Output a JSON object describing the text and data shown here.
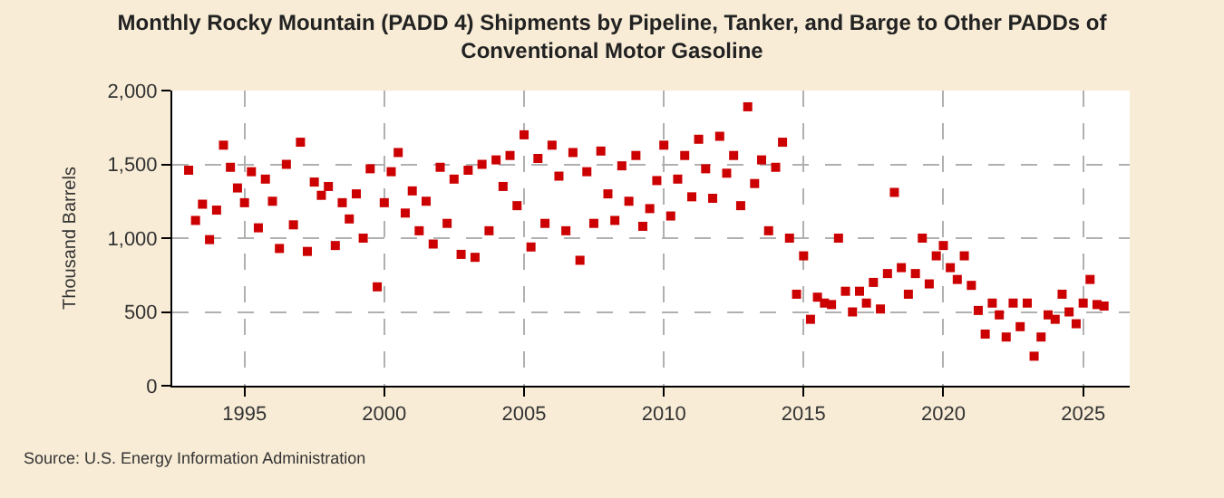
{
  "chart_data": {
    "type": "scatter",
    "title": "Monthly Rocky Mountain (PADD 4) Shipments by Pipeline, Tanker, and Barge to Other PADDs of Conventional Motor Gasoline",
    "ylabel": "Thousand Barrels",
    "annotations": [
      "Source: U.S. Energy Information Administration"
    ],
    "x": [
      "1993-01",
      "1993-04",
      "1993-07",
      "1993-10",
      "1994-01",
      "1994-04",
      "1994-07",
      "1994-10",
      "1995-01",
      "1995-04",
      "1995-07",
      "1995-10",
      "1996-01",
      "1996-04",
      "1996-07",
      "1996-10",
      "1997-01",
      "1997-04",
      "1997-07",
      "1997-10",
      "1998-01",
      "1998-04",
      "1998-07",
      "1998-10",
      "1999-01",
      "1999-04",
      "1999-07",
      "1999-10",
      "2000-01",
      "2000-04",
      "2000-07",
      "2000-10",
      "2001-01",
      "2001-04",
      "2001-07",
      "2001-10",
      "2002-01",
      "2002-04",
      "2002-07",
      "2002-10",
      "2003-01",
      "2003-04",
      "2003-07",
      "2003-10",
      "2004-01",
      "2004-04",
      "2004-07",
      "2004-10",
      "2005-01",
      "2005-04",
      "2005-07",
      "2005-10",
      "2006-01",
      "2006-04",
      "2006-07",
      "2006-10",
      "2007-01",
      "2007-04",
      "2007-07",
      "2007-10",
      "2008-01",
      "2008-04",
      "2008-07",
      "2008-10",
      "2009-01",
      "2009-04",
      "2009-07",
      "2009-10",
      "2010-01",
      "2010-04",
      "2010-07",
      "2010-10",
      "2011-01",
      "2011-04",
      "2011-07",
      "2011-10",
      "2012-01",
      "2012-04",
      "2012-07",
      "2012-10",
      "2013-01",
      "2013-04",
      "2013-07",
      "2013-10",
      "2014-01",
      "2014-04",
      "2014-07",
      "2014-10",
      "2015-01",
      "2015-04",
      "2015-07",
      "2015-10",
      "2016-01",
      "2016-04",
      "2016-07",
      "2016-10",
      "2017-01",
      "2017-04",
      "2017-07",
      "2017-10",
      "2018-01",
      "2018-04",
      "2018-07",
      "2018-10",
      "2019-01",
      "2019-04",
      "2019-07",
      "2019-10",
      "2020-01",
      "2020-04",
      "2020-07",
      "2020-10",
      "2021-01",
      "2021-04",
      "2021-07",
      "2021-10",
      "2022-01",
      "2022-04",
      "2022-07",
      "2022-10",
      "2023-01",
      "2023-04",
      "2023-07",
      "2023-10",
      "2024-01",
      "2024-04",
      "2024-07",
      "2024-10",
      "2025-01",
      "2025-04",
      "2025-07",
      "2025-10"
    ],
    "series": [
      {
        "color": "#cc0000",
        "values": [
          1460,
          1120,
          1230,
          990,
          1190,
          1630,
          1480,
          1340,
          1240,
          1450,
          1070,
          1400,
          1250,
          930,
          1500,
          1090,
          1650,
          910,
          1380,
          1290,
          1350,
          950,
          1240,
          1130,
          1300,
          1000,
          1470,
          670,
          1240,
          1450,
          1580,
          1170,
          1320,
          1050,
          1250,
          960,
          1480,
          1100,
          1400,
          890,
          1460,
          870,
          1500,
          1050,
          1530,
          1350,
          1560,
          1220,
          1700,
          940,
          1540,
          1100,
          1630,
          1420,
          1050,
          1580,
          850,
          1450,
          1100,
          1590,
          1300,
          1120,
          1490,
          1250,
          1560,
          1080,
          1200,
          1390,
          1630,
          1150,
          1400,
          1560,
          1280,
          1670,
          1470,
          1270,
          1690,
          1440,
          1560,
          1220,
          1890,
          1370,
          1530,
          1050,
          1480,
          1650,
          1000,
          620,
          880,
          450,
          600,
          560,
          550,
          1000,
          640,
          500,
          640,
          560,
          700,
          520,
          760,
          1310,
          800,
          620,
          760,
          1000,
          690,
          880,
          950,
          800,
          720,
          880,
          680,
          510,
          350,
          560,
          480,
          330,
          560,
          400,
          560,
          200,
          330,
          480,
          450,
          620,
          500,
          420,
          560,
          720,
          550,
          540
        ]
      }
    ],
    "xlim": [
      "1992-06",
      "2026-09"
    ],
    "xticks": [
      {
        "value": "1995",
        "label": "1995"
      },
      {
        "value": "2000",
        "label": "2000"
      },
      {
        "value": "2005",
        "label": "2005"
      },
      {
        "value": "2010",
        "label": "2010"
      },
      {
        "value": "2015",
        "label": "2015"
      },
      {
        "value": "2020",
        "label": "2020"
      },
      {
        "value": "2025",
        "label": "2025"
      }
    ],
    "ylim": [
      0,
      2000
    ],
    "yticks": [
      {
        "value": 0,
        "label": "0"
      },
      {
        "value": 500,
        "label": "500"
      },
      {
        "value": 1000,
        "label": "1,000"
      },
      {
        "value": 1500,
        "label": "1,500"
      },
      {
        "value": 2000,
        "label": "2,000"
      }
    ],
    "grid": true,
    "marker": "square"
  }
}
